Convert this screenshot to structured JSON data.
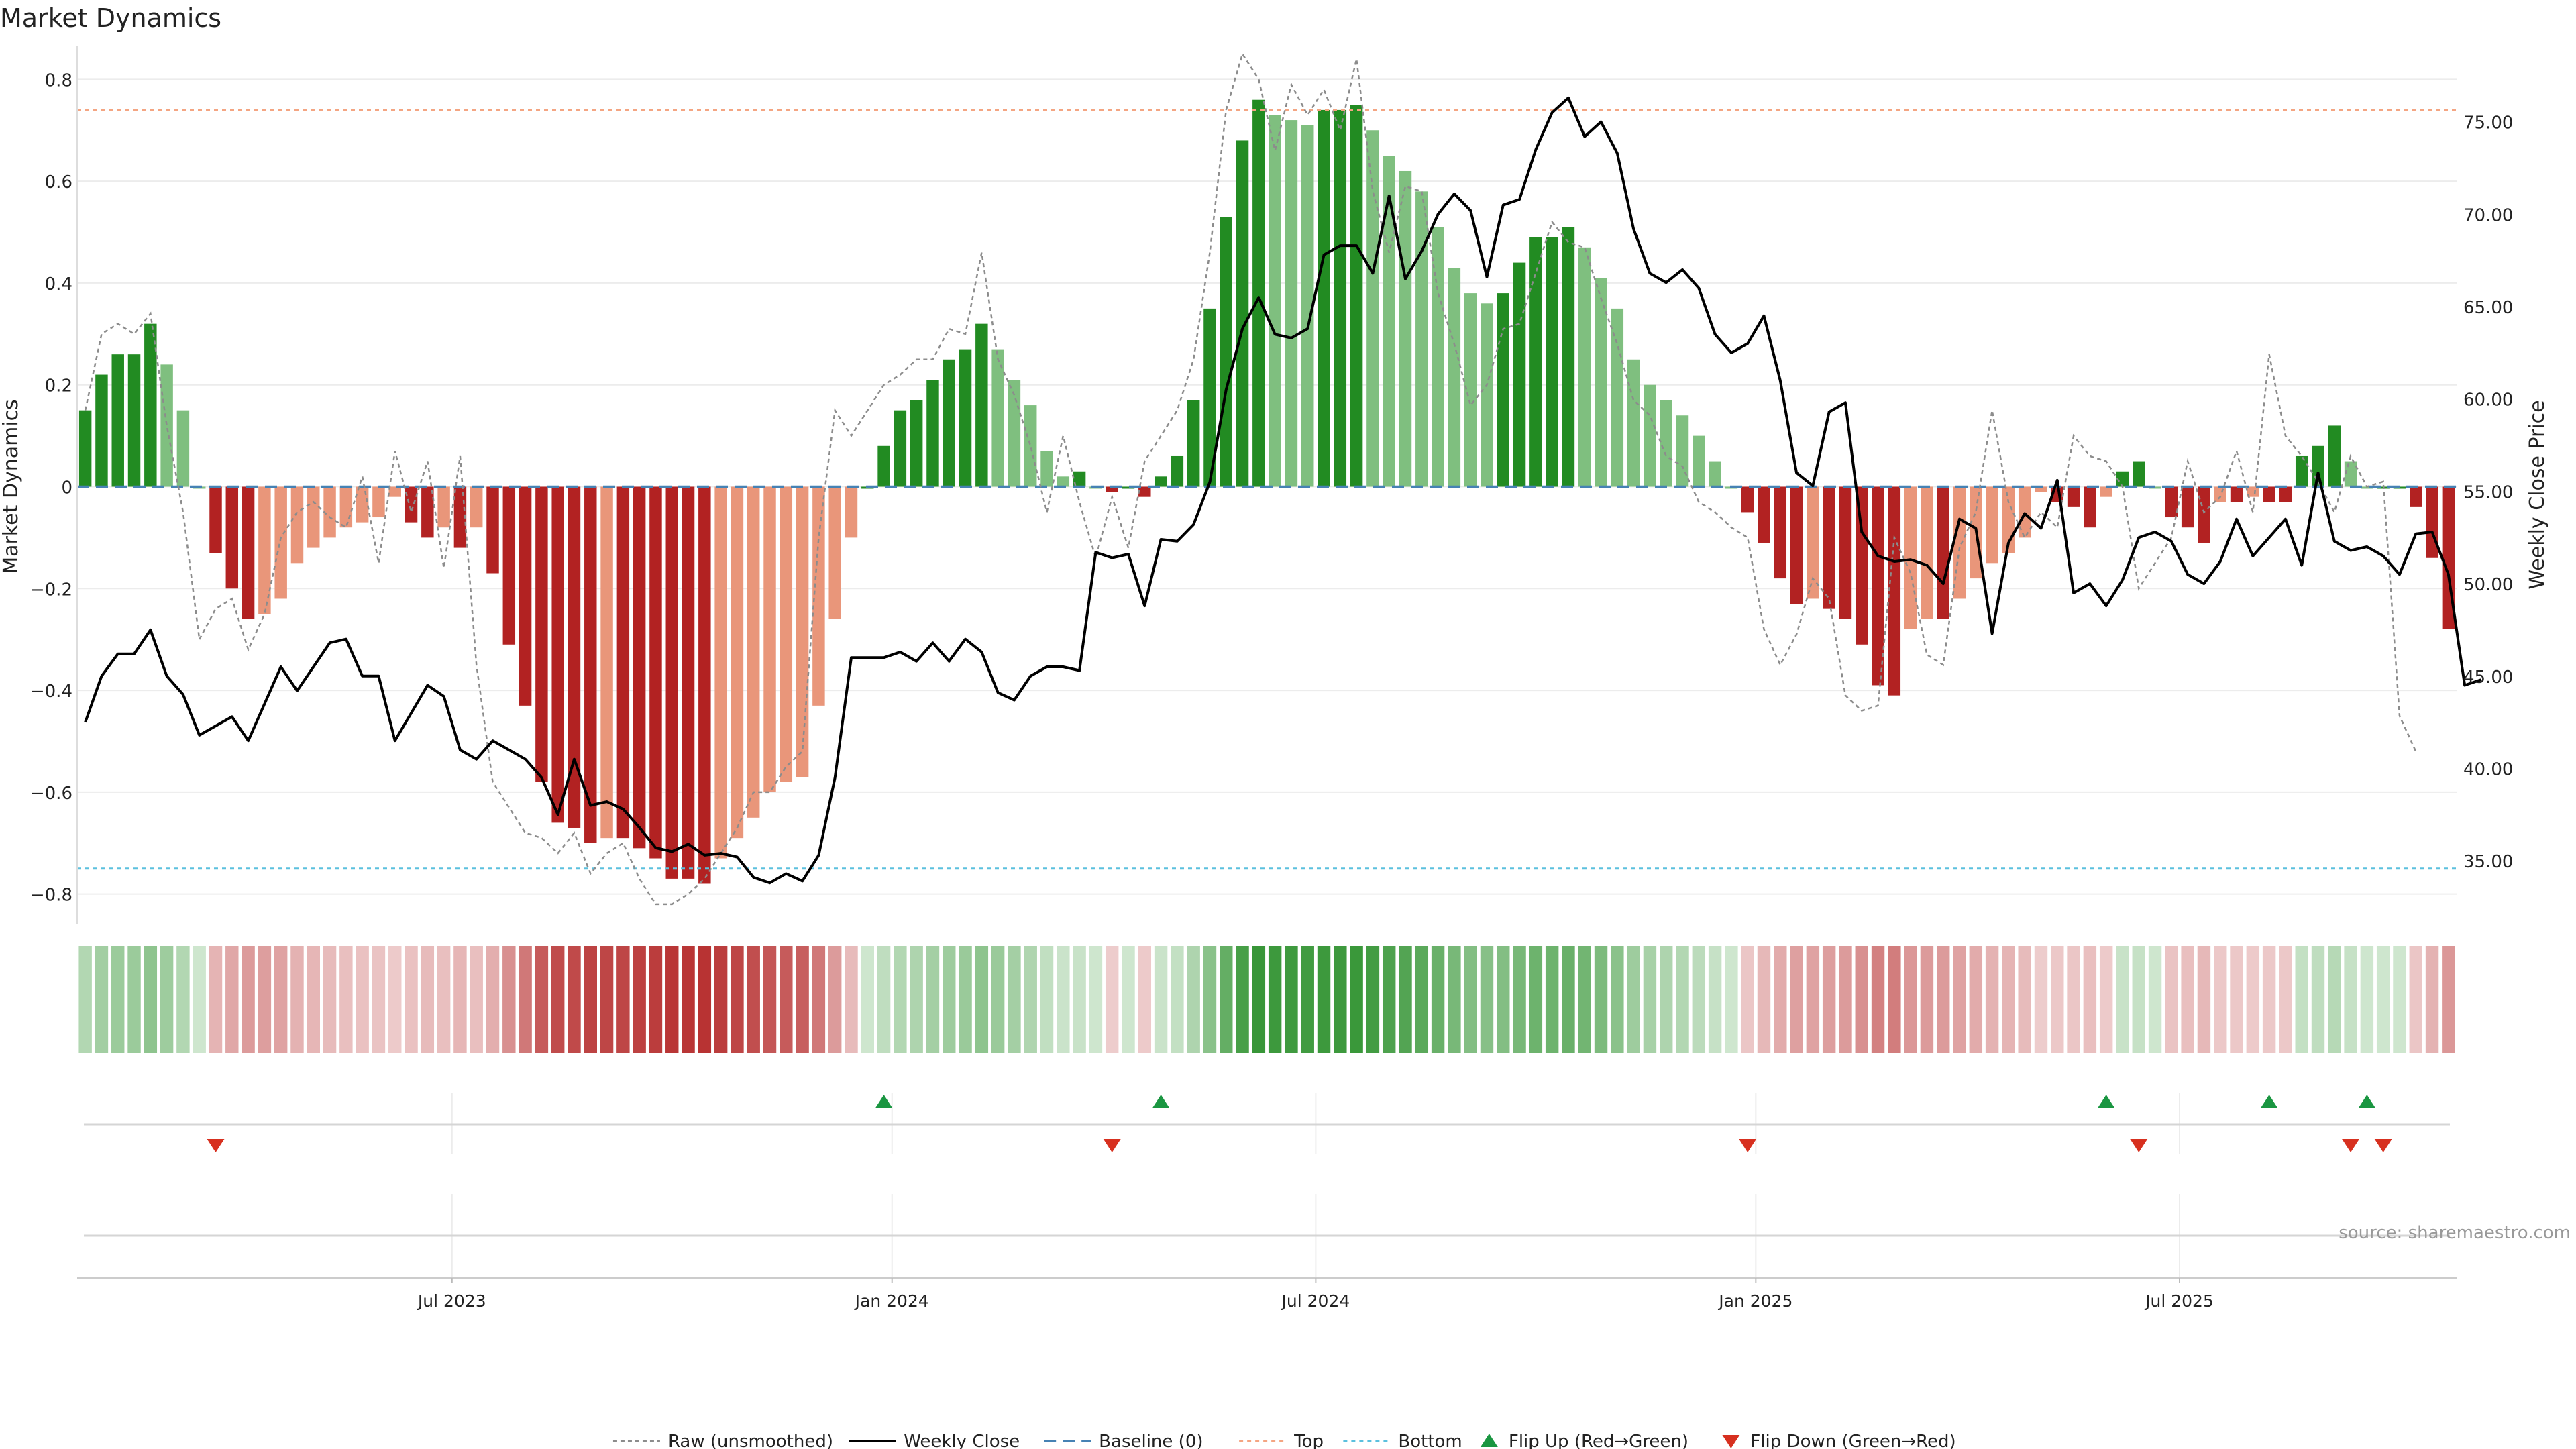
{
  "title": "Market Dynamics",
  "source": "source: sharemaestro.com",
  "colors": {
    "strong_green": "#228b22",
    "light_green": "#7fbf7f",
    "strong_red": "#b22222",
    "light_red": "#e9967a",
    "price": "#000000",
    "raw": "#8c8c8c",
    "baseline": "#4682b4",
    "top": "#f4a582",
    "bottom": "#5bc0de",
    "flip_up": "#1a9641",
    "flip_down": "#d7301f"
  },
  "chart_data": {
    "type": "bar",
    "x_ticks": [
      "Jul 2023",
      "Jan 2024",
      "Jul 2024",
      "Jan 2025",
      "Jul 2025"
    ],
    "x_tick_weeks": [
      23,
      50,
      76,
      103,
      129
    ],
    "y_left": {
      "label": "Market Dynamics",
      "ticks": [
        "0.8",
        "0.6",
        "0.4",
        "0.2",
        "0",
        "−0.2",
        "−0.4",
        "−0.6",
        "−0.8"
      ],
      "tick_values": [
        0.8,
        0.6,
        0.4,
        0.2,
        0,
        -0.2,
        -0.4,
        -0.6,
        -0.8
      ],
      "range": [
        -0.84,
        0.84
      ]
    },
    "y_right": {
      "label": "Weekly Close Price",
      "ticks": [
        "75.00",
        "70.00",
        "65.00",
        "60.00",
        "55.00",
        "50.00",
        "45.00",
        "40.00",
        "35.00"
      ],
      "tick_values": [
        75,
        70,
        65,
        60,
        55,
        50,
        45,
        40,
        35
      ],
      "range": [
        32.1,
        78.4
      ]
    },
    "top_level": 0.74,
    "bottom_level": -0.75,
    "weeks": 146,
    "series": [
      {
        "name": "Market Dynamics",
        "values": [
          0.15,
          0.22,
          0.26,
          0.26,
          0.32,
          0.24,
          0.15,
          0.0,
          -0.13,
          -0.2,
          -0.26,
          -0.25,
          -0.22,
          -0.15,
          -0.12,
          -0.1,
          -0.08,
          -0.07,
          -0.06,
          -0.02,
          -0.07,
          -0.1,
          -0.08,
          -0.12,
          -0.08,
          -0.17,
          -0.31,
          -0.43,
          -0.58,
          -0.66,
          -0.67,
          -0.7,
          -0.69,
          -0.69,
          -0.71,
          -0.73,
          -0.77,
          -0.77,
          -0.78,
          -0.73,
          -0.69,
          -0.65,
          -0.6,
          -0.58,
          -0.57,
          -0.43,
          -0.26,
          -0.1,
          0.0,
          0.08,
          0.15,
          0.17,
          0.21,
          0.25,
          0.27,
          0.32,
          0.27,
          0.21,
          0.16,
          0.07,
          0.02,
          0.03,
          0.0,
          -0.01,
          0.0,
          -0.02,
          0.02,
          0.06,
          0.17,
          0.35,
          0.53,
          0.68,
          0.76,
          0.73,
          0.72,
          0.71,
          0.74,
          0.74,
          0.75,
          0.7,
          0.65,
          0.62,
          0.58,
          0.51,
          0.43,
          0.38,
          0.36,
          0.38,
          0.44,
          0.49,
          0.49,
          0.51,
          0.47,
          0.41,
          0.35,
          0.25,
          0.2,
          0.17,
          0.14,
          0.1,
          0.05,
          0.0,
          -0.05,
          -0.11,
          -0.18,
          -0.23,
          -0.22,
          -0.24,
          -0.26,
          -0.31,
          -0.39,
          -0.41,
          -0.28,
          -0.26,
          -0.26,
          -0.22,
          -0.18,
          -0.15,
          -0.13,
          -0.1,
          -0.01,
          -0.03,
          -0.04,
          -0.08,
          -0.02,
          0.03,
          0.05,
          0.0,
          -0.06,
          -0.08,
          -0.11,
          -0.03,
          -0.03,
          -0.02,
          -0.03,
          -0.03,
          0.06,
          0.08,
          0.12,
          0.05,
          0.0,
          0.0,
          0.0,
          -0.04,
          -0.14,
          -0.28
        ]
      },
      {
        "name": "Raw (unsmoothed)",
        "values": [
          0.15,
          0.3,
          0.32,
          0.3,
          0.34,
          0.12,
          -0.05,
          -0.3,
          -0.24,
          -0.22,
          -0.32,
          -0.25,
          -0.1,
          -0.05,
          -0.03,
          -0.06,
          -0.08,
          0.02,
          -0.15,
          0.07,
          -0.05,
          0.05,
          -0.16,
          0.06,
          -0.35,
          -0.58,
          -0.63,
          -0.68,
          -0.69,
          -0.72,
          -0.68,
          -0.76,
          -0.72,
          -0.7,
          -0.77,
          -0.82,
          -0.82,
          -0.8,
          -0.77,
          -0.72,
          -0.67,
          -0.6,
          -0.6,
          -0.55,
          -0.52,
          -0.1,
          0.15,
          0.1,
          0.15,
          0.2,
          0.22,
          0.25,
          0.25,
          0.31,
          0.3,
          0.46,
          0.25,
          0.18,
          0.08,
          -0.05,
          0.1,
          -0.03,
          -0.14,
          -0.02,
          -0.12,
          0.05,
          0.1,
          0.15,
          0.25,
          0.46,
          0.74,
          0.85,
          0.8,
          0.66,
          0.79,
          0.73,
          0.78,
          0.7,
          0.84,
          0.58,
          0.46,
          0.59,
          0.58,
          0.38,
          0.28,
          0.16,
          0.2,
          0.31,
          0.32,
          0.42,
          0.52,
          0.48,
          0.47,
          0.37,
          0.28,
          0.17,
          0.14,
          0.06,
          0.04,
          -0.03,
          -0.05,
          -0.08,
          -0.1,
          -0.28,
          -0.35,
          -0.29,
          -0.18,
          -0.22,
          -0.41,
          -0.44,
          -0.43,
          -0.1,
          -0.17,
          -0.33,
          -0.35,
          -0.12,
          -0.05,
          0.15,
          -0.03,
          -0.1,
          -0.05,
          -0.08,
          0.1,
          0.06,
          0.05,
          0.0,
          -0.2,
          -0.15,
          -0.1,
          0.05,
          -0.05,
          -0.02,
          0.07,
          -0.05,
          0.26,
          0.1,
          0.06,
          0.01,
          -0.05,
          0.06,
          0.0,
          0.01,
          -0.45,
          -0.52
        ]
      },
      {
        "name": "Weekly Close",
        "values": [
          42.5,
          45.0,
          46.2,
          46.2,
          47.5,
          45.0,
          44.0,
          41.8,
          42.3,
          42.8,
          41.5,
          43.5,
          45.5,
          44.2,
          45.5,
          46.8,
          47.0,
          45.0,
          45.0,
          41.5,
          43.0,
          44.5,
          43.9,
          41.0,
          40.5,
          41.5,
          41.0,
          40.5,
          39.5,
          37.5,
          40.5,
          38.0,
          38.2,
          37.8,
          36.8,
          35.7,
          35.5,
          35.9,
          35.3,
          35.4,
          35.2,
          34.1,
          33.8,
          34.3,
          33.9,
          35.3,
          39.5,
          46.0,
          46.0,
          46.0,
          46.3,
          45.8,
          46.8,
          45.8,
          47.0,
          46.3,
          44.1,
          43.7,
          45.0,
          45.5,
          45.5,
          45.3,
          51.7,
          51.4,
          51.6,
          48.8,
          52.4,
          52.3,
          53.2,
          55.5,
          60.5,
          63.8,
          65.5,
          63.5,
          63.3,
          63.8,
          67.8,
          68.3,
          68.3,
          66.8,
          71.0,
          66.5,
          68.0,
          70.0,
          71.1,
          70.2,
          66.6,
          70.5,
          70.8,
          73.5,
          75.5,
          76.3,
          74.2,
          75.0,
          73.3,
          69.2,
          66.8,
          66.3,
          67.0,
          66.0,
          63.5,
          62.5,
          63.0,
          64.5,
          61.0,
          56.0,
          55.3,
          59.3,
          59.8,
          52.8,
          51.5,
          51.2,
          51.3,
          51.0,
          50.0,
          53.5,
          53.0,
          47.3,
          52.2,
          53.8,
          53.0,
          55.6,
          49.5,
          50.0,
          48.8,
          50.2,
          52.5,
          52.8,
          52.3,
          50.5,
          50.0,
          51.2,
          53.5,
          51.5,
          52.5,
          53.5,
          51.0,
          56.0,
          52.3,
          51.8,
          52.0,
          51.5,
          50.5,
          52.7,
          52.8,
          50.5,
          44.5,
          44.8
        ]
      }
    ],
    "flip_up_weeks": [
      49,
      66,
      124,
      134,
      140
    ],
    "flip_down_weeks": [
      8,
      63,
      102,
      126,
      139,
      141
    ],
    "legend": {
      "placement": "bottom-center",
      "entries": [
        "Raw (unsmoothed)",
        "Weekly Close",
        "Baseline (0)",
        "Top",
        "Bottom",
        "Flip Up (Red→Green)",
        "Flip Down (Green→Red)"
      ]
    }
  }
}
